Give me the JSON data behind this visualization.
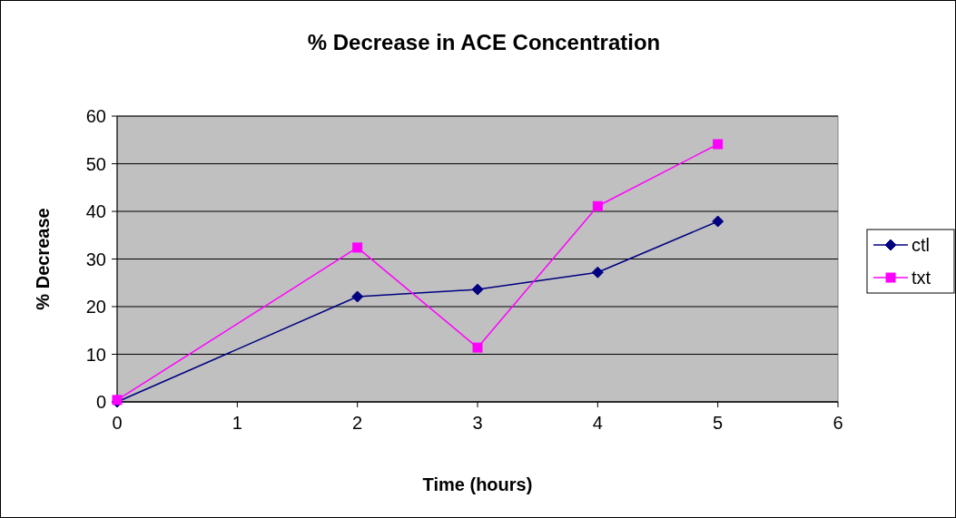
{
  "chart_data": {
    "type": "line",
    "title": "% Decrease in ACE Concentration",
    "xlabel": "Time (hours)",
    "ylabel": "% Decrease",
    "xlim": [
      0,
      6
    ],
    "xticks": [
      0,
      1,
      2,
      3,
      4,
      5,
      6
    ],
    "ylim": [
      0,
      60
    ],
    "yticks": [
      0,
      10,
      20,
      30,
      40,
      50,
      60
    ],
    "grid": "y",
    "legend": "right",
    "series": [
      {
        "name": "ctl",
        "color": "#000080",
        "marker": "diamond",
        "x": [
          0,
          2,
          3,
          4,
          5
        ],
        "values": [
          0,
          22.1,
          23.6,
          27.2,
          37.9
        ]
      },
      {
        "name": "txt",
        "color": "#ff00ff",
        "marker": "square",
        "x": [
          0,
          2,
          3,
          4,
          5
        ],
        "values": [
          0.4,
          32.4,
          11.4,
          41.1,
          54.1
        ]
      }
    ]
  }
}
